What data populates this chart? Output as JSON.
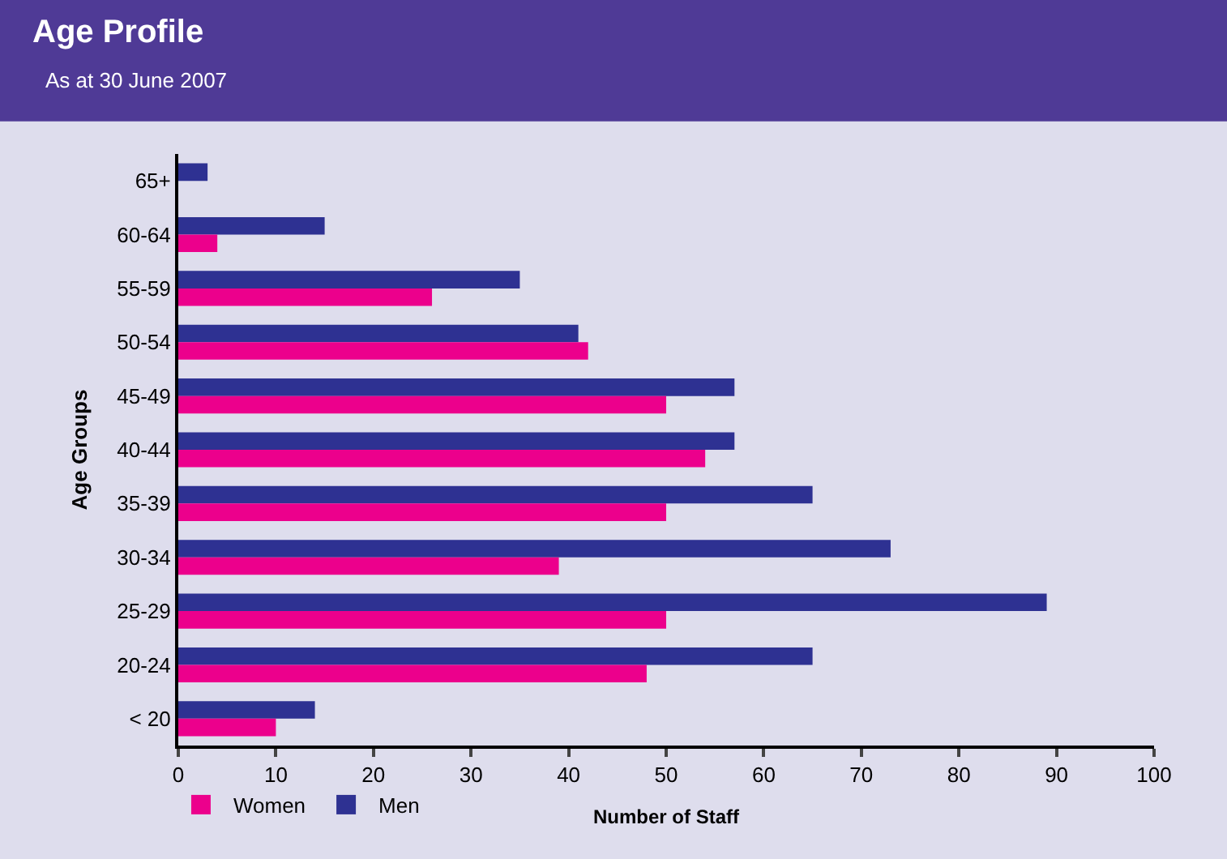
{
  "chart_data": {
    "type": "bar",
    "orientation": "horizontal",
    "title": "Age Profile",
    "subtitle": "As at 30 June 2007",
    "xlabel": "Number of Staff",
    "ylabel": "Age Groups",
    "categories": [
      "65+",
      "60-64",
      "55-59",
      "50-54",
      "45-49",
      "40-44",
      "35-39",
      "30-34",
      "25-29",
      "20-24",
      "< 20"
    ],
    "series": [
      {
        "name": "Women",
        "color": "#ec008c",
        "values": [
          0,
          4,
          26,
          42,
          50,
          54,
          50,
          39,
          50,
          48,
          10
        ]
      },
      {
        "name": "Men",
        "color": "#2e3192",
        "values": [
          3,
          15,
          35,
          41,
          57,
          57,
          65,
          73,
          89,
          65,
          14
        ]
      }
    ],
    "xlim": [
      0,
      100
    ],
    "xticks": [
      0,
      10,
      20,
      30,
      40,
      50,
      60,
      70,
      80,
      90,
      100
    ],
    "grid": false,
    "legend": "bottom left"
  }
}
